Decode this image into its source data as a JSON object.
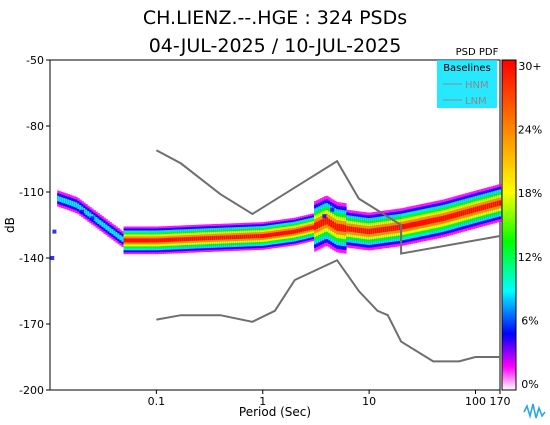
{
  "chart_data": {
    "type": "heatmap",
    "title": "CH.LIENZ.--.HGE : 324 PSDs",
    "subtitle": "04-JUL-2025 / 10-JUL-2025",
    "xlabel": "Period (Sec)",
    "ylabel": "dB",
    "x_scale": "log",
    "xlim": [
      0.01,
      170
    ],
    "ylim": [
      -200,
      -50
    ],
    "x_ticks": [
      {
        "value": 0.1,
        "label": "0.1"
      },
      {
        "value": 1,
        "label": "1"
      },
      {
        "value": 10,
        "label": "10"
      },
      {
        "value": 100,
        "label": "100"
      },
      {
        "value": 170,
        "label": "170"
      }
    ],
    "y_ticks": [
      {
        "value": -50,
        "label": "-50"
      },
      {
        "value": -80,
        "label": "-80"
      },
      {
        "value": -110,
        "label": "-110"
      },
      {
        "value": -140,
        "label": "-140"
      },
      {
        "value": -170,
        "label": "-170"
      },
      {
        "value": -200,
        "label": "-200"
      }
    ],
    "grid": false,
    "colorbar": {
      "title": "PSD PDF",
      "ticks": [
        "30+",
        "24%",
        "18%",
        "12%",
        "6%",
        "0%"
      ],
      "colors": [
        "#ff0000",
        "#ff8000",
        "#ffff00",
        "#00ff00",
        "#00ffff",
        "#0000ff",
        "#ff00ff",
        "#ffffff"
      ]
    },
    "legend": {
      "title": "Baselines",
      "position": "top-right",
      "entries": [
        "HNM",
        "LNM"
      ]
    },
    "baselines": {
      "HNM": [
        [
          0.1,
          -91
        ],
        [
          0.17,
          -97
        ],
        [
          0.4,
          -111
        ],
        [
          0.8,
          -120
        ],
        [
          5,
          -96
        ],
        [
          8,
          -113
        ],
        [
          20,
          -125
        ],
        [
          20,
          -138
        ],
        [
          170,
          -130
        ]
      ],
      "LNM": [
        [
          0.1,
          -168
        ],
        [
          0.17,
          -166
        ],
        [
          0.4,
          -166
        ],
        [
          0.8,
          -169
        ],
        [
          1.3,
          -164
        ],
        [
          2,
          -150
        ],
        [
          5,
          -141
        ],
        [
          8,
          -155
        ],
        [
          12,
          -164
        ],
        [
          15,
          -166
        ],
        [
          20,
          -178
        ],
        [
          40,
          -187
        ],
        [
          70,
          -187
        ],
        [
          100,
          -185
        ],
        [
          170,
          -185
        ]
      ]
    },
    "psd_mode": [
      [
        0.012,
        -113
      ],
      [
        0.018,
        -116
      ],
      [
        0.03,
        -124
      ],
      [
        0.05,
        -132
      ],
      [
        0.1,
        -132
      ],
      [
        0.3,
        -131
      ],
      [
        1,
        -130
      ],
      [
        2,
        -128
      ],
      [
        3,
        -126
      ],
      [
        4,
        -123
      ],
      [
        5,
        -126
      ],
      [
        7,
        -127
      ],
      [
        10,
        -128
      ],
      [
        20,
        -126
      ],
      [
        50,
        -122
      ],
      [
        100,
        -118
      ],
      [
        170,
        -115
      ]
    ]
  }
}
